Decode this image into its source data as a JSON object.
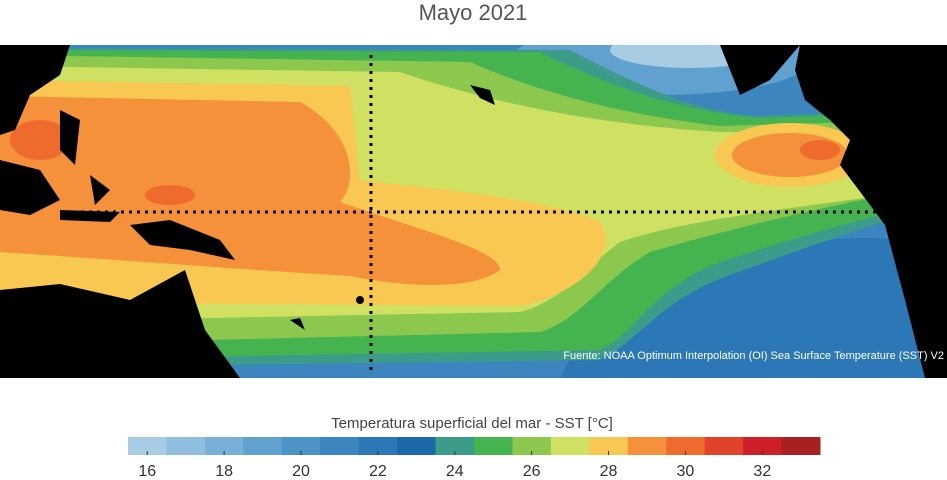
{
  "title": "Mayo 2021",
  "source": "Fuente: NOAA Optimum Interpolation (OI) Sea Surface Temperature (SST) V2",
  "colorbar": {
    "label": "Temperatura superficial del mar - SST  [°C]",
    "lim": [
      15.5,
      33.5
    ],
    "ticks": [
      16,
      18,
      20,
      22,
      24,
      26,
      28,
      30,
      32
    ],
    "colors": [
      "#a8cce4",
      "#8fbedf",
      "#78b0d8",
      "#61a1cf",
      "#4d93c7",
      "#3c85be",
      "#2c77b5",
      "#1c69a8",
      "#3d9b8a",
      "#45b350",
      "#8cc84e",
      "#cfe063",
      "#f9c853",
      "#f5913a",
      "#ee6b2d",
      "#e0432a",
      "#cc1f27",
      "#a8201f"
    ]
  }
}
